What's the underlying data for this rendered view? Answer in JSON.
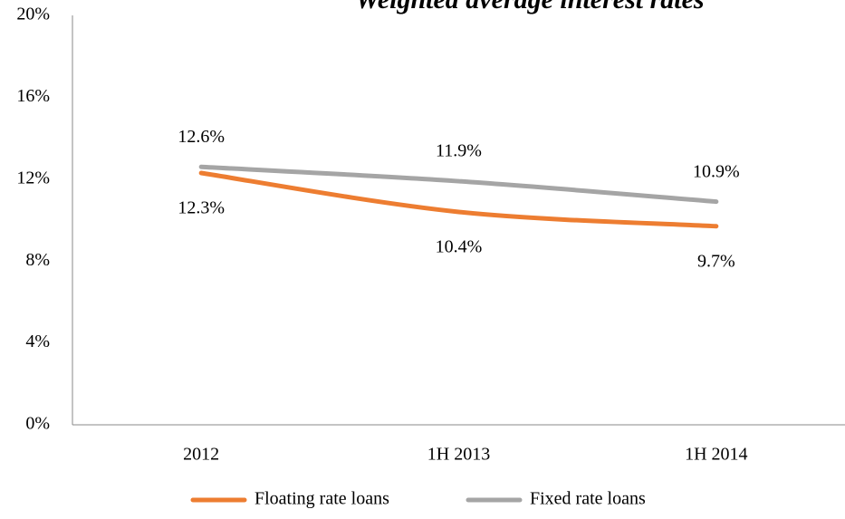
{
  "chart_data": {
    "type": "line",
    "title": "Weighted average interest rates",
    "categories": [
      "2012",
      "1H 2013",
      "1H 2014"
    ],
    "series": [
      {
        "name": "Floating rate loans",
        "color": "#ed7d31",
        "values": [
          12.3,
          10.4,
          9.7
        ],
        "value_labels": [
          "12.3%",
          "10.4%",
          "9.7%"
        ]
      },
      {
        "name": "Fixed rate loans",
        "color": "#a5a5a5",
        "values": [
          12.6,
          11.9,
          10.9
        ],
        "value_labels": [
          "12.6%",
          "11.9%",
          "10.9%"
        ]
      }
    ],
    "ylim": [
      0,
      20
    ],
    "yticks": [
      {
        "value": 0,
        "label": "0%"
      },
      {
        "value": 4,
        "label": "4%"
      },
      {
        "value": 8,
        "label": "8%"
      },
      {
        "value": 12,
        "label": "12%"
      },
      {
        "value": 16,
        "label": "16%"
      },
      {
        "value": 20,
        "label": "20%"
      }
    ],
    "grid": false,
    "legend": "bottom"
  }
}
